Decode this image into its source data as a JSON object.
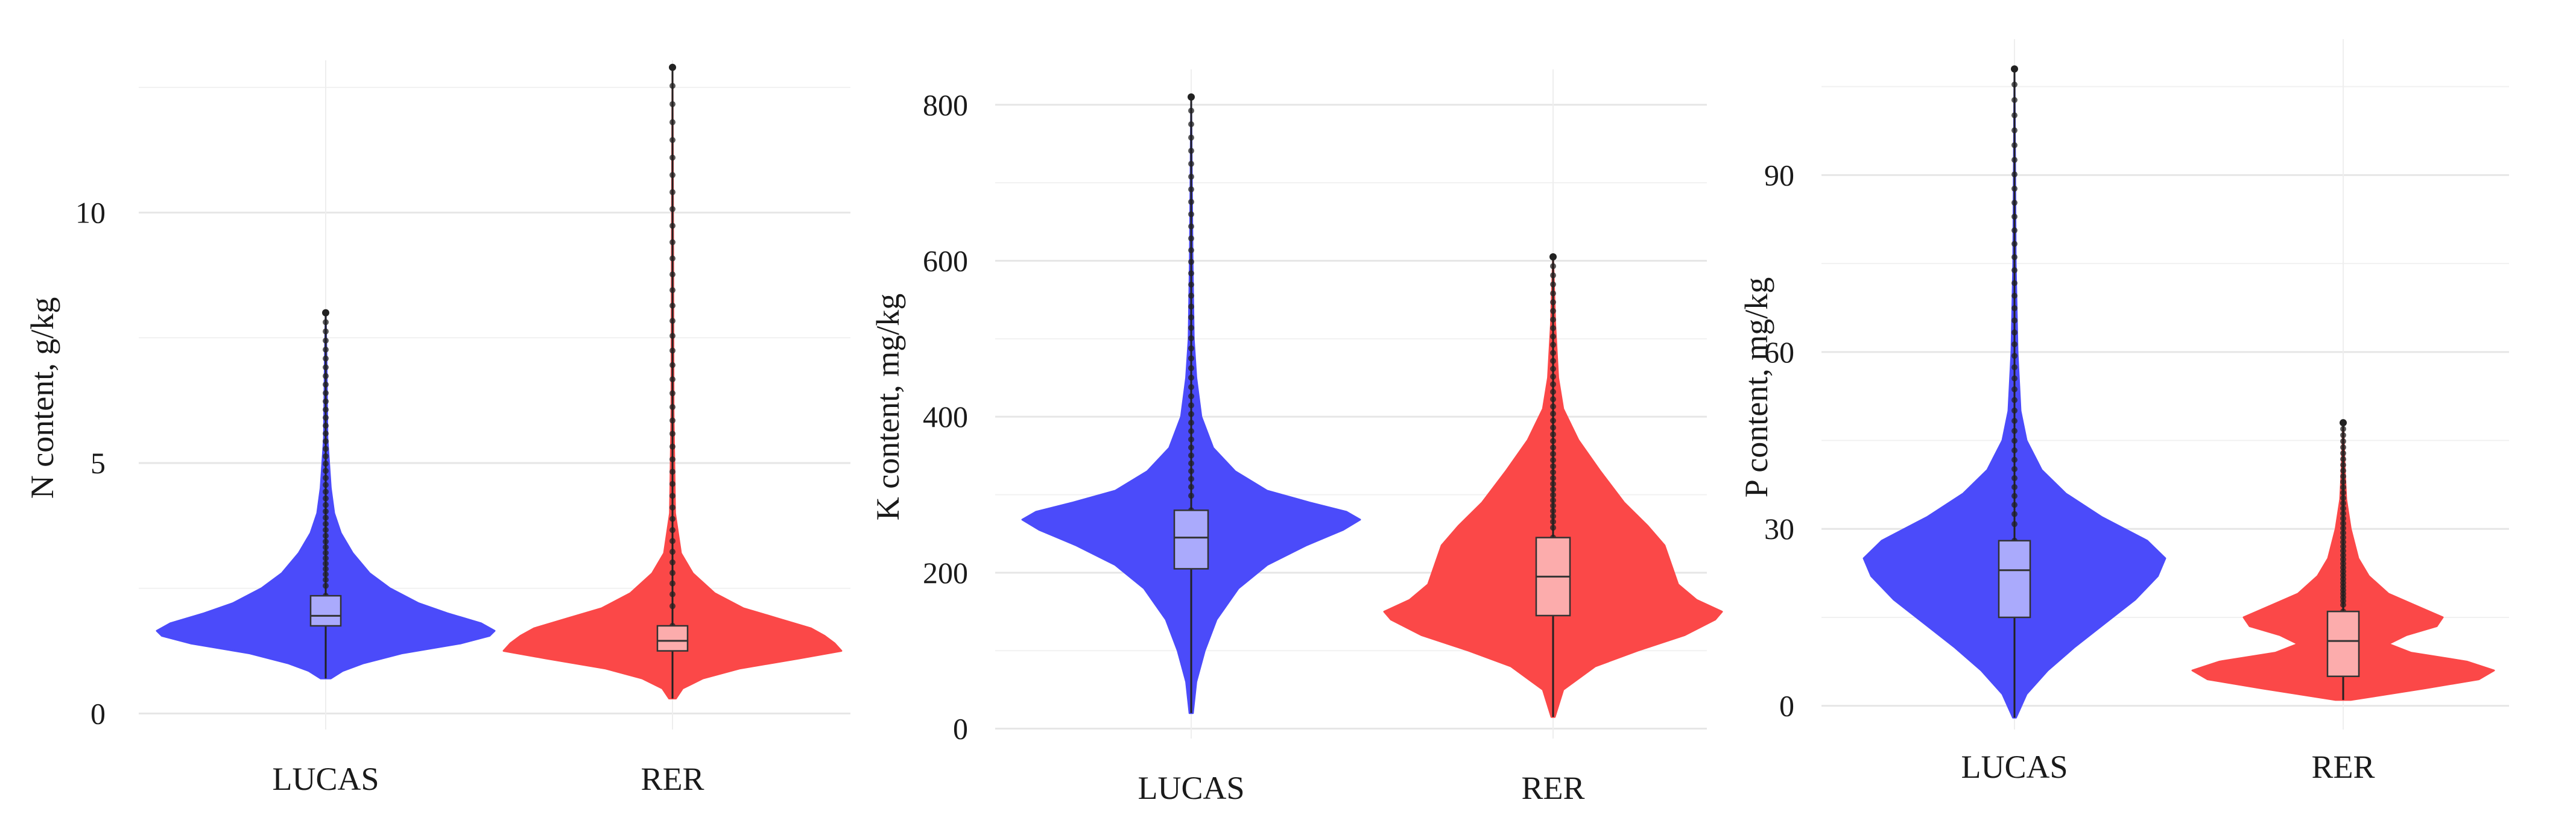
{
  "chart_data": [
    {
      "type": "violin",
      "ylabel": "N content, g/kg",
      "ylim": [
        -0.2,
        12.8
      ],
      "yticks": [
        0,
        5,
        10
      ],
      "grid": true,
      "categories": [
        "LUCAS",
        "RER"
      ],
      "series": [
        {
          "name": "LUCAS",
          "color": "#4b4bfa",
          "box_color": "#aaaafc",
          "min": 0.7,
          "q1": 1.75,
          "median": 1.95,
          "q3": 2.35,
          "max": 8.0,
          "density": [
            [
              0.7,
              0.03
            ],
            [
              0.85,
              0.1
            ],
            [
              1.0,
              0.22
            ],
            [
              1.2,
              0.45
            ],
            [
              1.4,
              0.8
            ],
            [
              1.55,
              0.97
            ],
            [
              1.65,
              1.0
            ],
            [
              1.8,
              0.92
            ],
            [
              2.0,
              0.72
            ],
            [
              2.2,
              0.55
            ],
            [
              2.5,
              0.38
            ],
            [
              2.8,
              0.26
            ],
            [
              3.2,
              0.16
            ],
            [
              3.6,
              0.09
            ],
            [
              4.0,
              0.05
            ],
            [
              4.5,
              0.03
            ],
            [
              5.5,
              0.01
            ],
            [
              7.0,
              0.005
            ],
            [
              8.0,
              0.0
            ]
          ]
        },
        {
          "name": "RER",
          "color": "#fb4848",
          "box_color": "#fcacac",
          "min": 0.3,
          "q1": 1.25,
          "median": 1.45,
          "q3": 1.75,
          "max": 12.9,
          "density": [
            [
              0.3,
              0.02
            ],
            [
              0.5,
              0.06
            ],
            [
              0.7,
              0.18
            ],
            [
              0.9,
              0.4
            ],
            [
              1.1,
              0.75
            ],
            [
              1.25,
              1.0
            ],
            [
              1.4,
              0.96
            ],
            [
              1.55,
              0.9
            ],
            [
              1.7,
              0.82
            ],
            [
              1.9,
              0.62
            ],
            [
              2.1,
              0.42
            ],
            [
              2.4,
              0.25
            ],
            [
              2.8,
              0.12
            ],
            [
              3.2,
              0.05
            ],
            [
              4.0,
              0.015
            ],
            [
              6.0,
              0.006
            ],
            [
              9.0,
              0.004
            ],
            [
              12.9,
              0.0
            ]
          ]
        }
      ]
    },
    {
      "type": "violin",
      "ylabel": "K content, mg/kg",
      "ylim": [
        -5,
        830
      ],
      "yticks": [
        0,
        200,
        400,
        600,
        800
      ],
      "grid": true,
      "categories": [
        "LUCAS",
        "RER"
      ],
      "series": [
        {
          "name": "LUCAS",
          "color": "#4b4bfa",
          "box_color": "#aaaafc",
          "min": 20,
          "q1": 205,
          "median": 245,
          "q3": 280,
          "max": 810,
          "density": [
            [
              20,
              0.01
            ],
            [
              60,
              0.03
            ],
            [
              100,
              0.08
            ],
            [
              140,
              0.15
            ],
            [
              180,
              0.28
            ],
            [
              210,
              0.45
            ],
            [
              235,
              0.68
            ],
            [
              255,
              0.9
            ],
            [
              268,
              1.0
            ],
            [
              278,
              0.92
            ],
            [
              290,
              0.7
            ],
            [
              305,
              0.45
            ],
            [
              330,
              0.26
            ],
            [
              360,
              0.13
            ],
            [
              400,
              0.06
            ],
            [
              450,
              0.03
            ],
            [
              500,
              0.015
            ],
            [
              600,
              0.008
            ],
            [
              700,
              0.004
            ],
            [
              810,
              0.0
            ]
          ]
        },
        {
          "name": "RER",
          "color": "#fb4848",
          "box_color": "#fcacac",
          "min": 15,
          "q1": 145,
          "median": 195,
          "q3": 245,
          "max": 605,
          "density": [
            [
              15,
              0.01
            ],
            [
              50,
              0.06
            ],
            [
              80,
              0.25
            ],
            [
              100,
              0.5
            ],
            [
              120,
              0.78
            ],
            [
              140,
              0.96
            ],
            [
              150,
              1.0
            ],
            [
              165,
              0.85
            ],
            [
              185,
              0.74
            ],
            [
              210,
              0.7
            ],
            [
              235,
              0.66
            ],
            [
              260,
              0.56
            ],
            [
              290,
              0.42
            ],
            [
              330,
              0.28
            ],
            [
              370,
              0.15
            ],
            [
              410,
              0.06
            ],
            [
              450,
              0.03
            ],
            [
              520,
              0.012
            ],
            [
              605,
              0.0
            ]
          ]
        }
      ]
    },
    {
      "type": "violin",
      "ylabel": "P content, mg/kg",
      "ylim": [
        -3,
        111
      ],
      "yticks": [
        0,
        30,
        60,
        90
      ],
      "grid": true,
      "categories": [
        "LUCAS",
        "RER"
      ],
      "series": [
        {
          "name": "LUCAS",
          "color": "#4b4bfa",
          "box_color": "#aaaafc",
          "min": -2,
          "q1": 15,
          "median": 23,
          "q3": 28,
          "max": 108,
          "density": [
            [
              -2,
              0.01
            ],
            [
              2,
              0.08
            ],
            [
              6,
              0.22
            ],
            [
              10,
              0.4
            ],
            [
              14,
              0.6
            ],
            [
              18,
              0.8
            ],
            [
              22,
              0.95
            ],
            [
              25,
              1.0
            ],
            [
              28,
              0.88
            ],
            [
              32,
              0.58
            ],
            [
              36,
              0.34
            ],
            [
              40,
              0.18
            ],
            [
              45,
              0.08
            ],
            [
              50,
              0.04
            ],
            [
              60,
              0.02
            ],
            [
              75,
              0.008
            ],
            [
              108,
              0.0
            ]
          ]
        },
        {
          "name": "RER",
          "color": "#fb4848",
          "box_color": "#fcacac",
          "min": 1,
          "q1": 5,
          "median": 11,
          "q3": 16,
          "max": 48,
          "density": [
            [
              1,
              0.05
            ],
            [
              3,
              0.55
            ],
            [
              4.5,
              0.9
            ],
            [
              6,
              1.0
            ],
            [
              7.5,
              0.82
            ],
            [
              9,
              0.45
            ],
            [
              10.5,
              0.3
            ],
            [
              12,
              0.42
            ],
            [
              13.5,
              0.62
            ],
            [
              15,
              0.66
            ],
            [
              17,
              0.48
            ],
            [
              19,
              0.3
            ],
            [
              22,
              0.17
            ],
            [
              25,
              0.1
            ],
            [
              30,
              0.05
            ],
            [
              35,
              0.02
            ],
            [
              40,
              0.01
            ],
            [
              48,
              0.0
            ]
          ]
        }
      ]
    }
  ]
}
